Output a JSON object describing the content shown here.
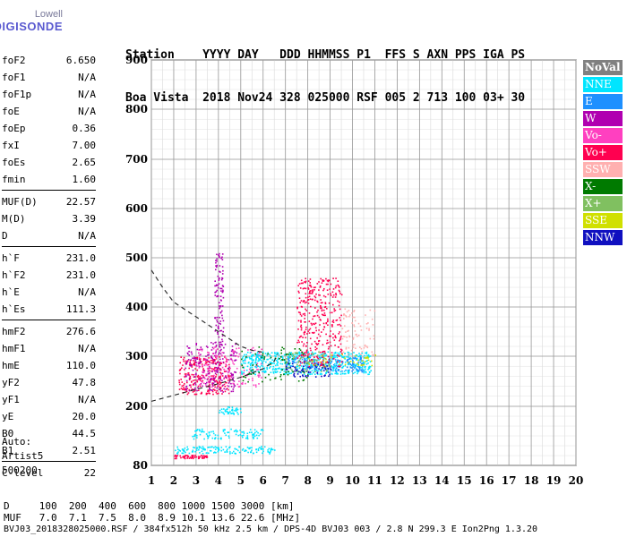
{
  "logo": {
    "line1": "Lowell",
    "line2": "DIGISONDE"
  },
  "header": {
    "row1": "Station    YYYY DAY   DDD HHMMSS P1  FFS S AXN PPS IGA PS",
    "row2": "Boa Vista  2018 Nov24 328 025000 RSF 005 2 713 100 03+ 30"
  },
  "params": [
    [
      {
        "n": "foF2",
        "v": "6.650"
      },
      {
        "n": "foF1",
        "v": "N/A"
      },
      {
        "n": "foF1p",
        "v": "N/A"
      },
      {
        "n": "foE",
        "v": "N/A"
      },
      {
        "n": "foEp",
        "v": "0.36"
      },
      {
        "n": "fxI",
        "v": "7.00"
      },
      {
        "n": "foEs",
        "v": "2.65"
      },
      {
        "n": "fmin",
        "v": "1.60"
      }
    ],
    [
      {
        "n": "MUF(D)",
        "v": "22.57"
      },
      {
        "n": "M(D)",
        "v": "3.39"
      },
      {
        "n": "D",
        "v": "N/A"
      }
    ],
    [
      {
        "n": "h`F",
        "v": "231.0"
      },
      {
        "n": "h`F2",
        "v": "231.0"
      },
      {
        "n": "h`E",
        "v": "N/A"
      },
      {
        "n": "h`Es",
        "v": "111.3"
      }
    ],
    [
      {
        "n": "hmF2",
        "v": "276.6"
      },
      {
        "n": "hmF1",
        "v": "N/A"
      },
      {
        "n": "hmE",
        "v": "110.0"
      },
      {
        "n": "yF2",
        "v": "47.8"
      },
      {
        "n": "yF1",
        "v": "N/A"
      },
      {
        "n": "yE",
        "v": "20.0"
      },
      {
        "n": "B0",
        "v": "44.5"
      },
      {
        "n": "B1",
        "v": "2.51"
      }
    ],
    [
      {
        "n": "C-level",
        "v": "22"
      }
    ]
  ],
  "auto": {
    "line1": "Auto:",
    "line2": "Artist5",
    "line3": "500200"
  },
  "legend": [
    {
      "label": "NoVal",
      "color": "#808080"
    },
    {
      "label": "NNE",
      "color": "#00e5ff"
    },
    {
      "label": "E",
      "color": "#1e90ff"
    },
    {
      "label": "W",
      "color": "#b000b0"
    },
    {
      "label": "Vo-",
      "color": "#ff40c0"
    },
    {
      "label": "Vo+",
      "color": "#ff0050"
    },
    {
      "label": "SSW",
      "color": "#ffb0b0"
    },
    {
      "label": "X-",
      "color": "#007a00"
    },
    {
      "label": "X+",
      "color": "#80c060"
    },
    {
      "label": "SSE",
      "color": "#d0e000"
    },
    {
      "label": "NNW",
      "color": "#1010c0"
    }
  ],
  "footer": {
    "line1": "D     100  200  400  600  800 1000 1500 3000 [km]",
    "line2": "MUF   7.0  7.1  7.5  8.0  8.9 10.1 13.6 22.6 [MHz]",
    "line3": "BVJ03_2018328025000.RSF / 384fx512h 50 kHz 2.5 km / DPS-4D BVJ03 003 / 2.8 N 299.3 E Ion2Png 1.3.20"
  },
  "chart_data": {
    "type": "scatter",
    "xlim": [
      1,
      20
    ],
    "ylim": [
      80,
      900
    ],
    "x_ticks": [
      1,
      2,
      3,
      4,
      5,
      6,
      7,
      8,
      9,
      10,
      11,
      12,
      13,
      14,
      15,
      16,
      17,
      18,
      19,
      20
    ],
    "y_ticks": [
      80,
      200,
      300,
      400,
      500,
      600,
      700,
      800,
      900
    ],
    "grid": true,
    "legend_position": "right",
    "profile_curve": [
      [
        1,
        475
      ],
      [
        1.5,
        440
      ],
      [
        2,
        410
      ],
      [
        2.5,
        395
      ],
      [
        3,
        380
      ],
      [
        3.5,
        365
      ],
      [
        4,
        350
      ],
      [
        4.5,
        335
      ],
      [
        5,
        320
      ],
      [
        5.5,
        312
      ],
      [
        6,
        308
      ]
    ],
    "trace_curve": [
      [
        1,
        210
      ],
      [
        2,
        222
      ],
      [
        3,
        234
      ],
      [
        4,
        245
      ],
      [
        5,
        258
      ],
      [
        6,
        275
      ],
      [
        6.5,
        290
      ],
      [
        6.65,
        305
      ]
    ],
    "clusters": [
      {
        "dir": "Vo+",
        "x": [
          2.2,
          4.5
        ],
        "y": [
          225,
          300
        ],
        "density": 70
      },
      {
        "dir": "W",
        "x": [
          2.5,
          4.8
        ],
        "y": [
          230,
          330
        ],
        "density": 55
      },
      {
        "dir": "Vo-",
        "x": [
          3,
          6
        ],
        "y": [
          240,
          320
        ],
        "density": 40
      },
      {
        "dir": "NNE",
        "x": [
          5,
          10.8
        ],
        "y": [
          265,
          310
        ],
        "density": 140
      },
      {
        "dir": "E",
        "x": [
          7,
          10.5
        ],
        "y": [
          270,
          300
        ],
        "density": 40
      },
      {
        "dir": "Vo+",
        "x": [
          7.5,
          9.5
        ],
        "y": [
          280,
          460
        ],
        "density": 90
      },
      {
        "dir": "W",
        "x": [
          3.8,
          4.2
        ],
        "y": [
          320,
          510
        ],
        "density": 25
      },
      {
        "dir": "SSW",
        "x": [
          9.5,
          11
        ],
        "y": [
          300,
          400
        ],
        "density": 20
      },
      {
        "dir": "X-",
        "x": [
          5,
          8
        ],
        "y": [
          250,
          320
        ],
        "density": 20
      },
      {
        "dir": "X+",
        "x": [
          7,
          9
        ],
        "y": [
          270,
          310
        ],
        "density": 15
      },
      {
        "dir": "SSE",
        "x": [
          8,
          11
        ],
        "y": [
          280,
          305
        ],
        "density": 10
      },
      {
        "dir": "NNW",
        "x": [
          7,
          9
        ],
        "y": [
          260,
          290
        ],
        "density": 15
      },
      {
        "dir": "NNE",
        "x": [
          2,
          6.5
        ],
        "y": [
          105,
          120
        ],
        "density": 35
      },
      {
        "dir": "NNE",
        "x": [
          2.8,
          6
        ],
        "y": [
          135,
          155
        ],
        "density": 25
      },
      {
        "dir": "Vo+",
        "x": [
          2,
          3.5
        ],
        "y": [
          95,
          102
        ],
        "density": 15
      },
      {
        "dir": "NNE",
        "x": [
          4,
          5
        ],
        "y": [
          185,
          200
        ],
        "density": 10
      }
    ]
  }
}
